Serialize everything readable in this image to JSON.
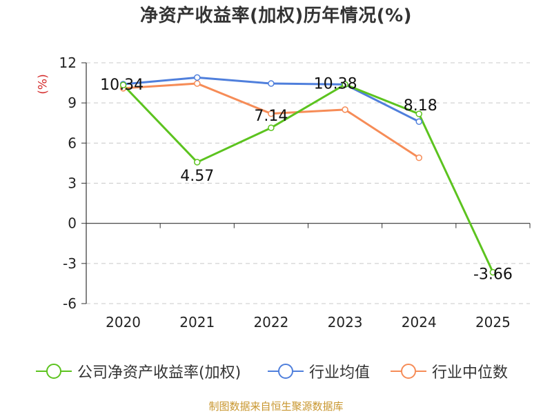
{
  "chart_data": {
    "type": "line",
    "title": "净资产收益率(加权)历年情况(%)",
    "ylabel": "(%)",
    "categories": [
      "2020",
      "2021",
      "2022",
      "2023",
      "2024",
      "2025"
    ],
    "ylim": [
      -6,
      12
    ],
    "yticks": [
      "12",
      "9",
      "6",
      "3",
      "0",
      "-3",
      "-6"
    ],
    "series": [
      {
        "name": "公司净资产收益率(加权)",
        "color": "#5cc31f",
        "values": [
          10.34,
          4.57,
          7.14,
          10.38,
          8.18,
          -3.66
        ],
        "labels": [
          "10.34",
          "4.57",
          "7.14",
          "10.38",
          "8.18",
          "-3.66"
        ]
      },
      {
        "name": "行业均值",
        "color": "#4f7fdc",
        "values": [
          10.4,
          10.9,
          10.45,
          10.38,
          7.6,
          null
        ]
      },
      {
        "name": "行业中位数",
        "color": "#f68c57",
        "values": [
          10.1,
          10.45,
          8.2,
          8.5,
          4.9,
          null
        ]
      }
    ]
  },
  "source": "制图数据来自恒生聚源数据库"
}
